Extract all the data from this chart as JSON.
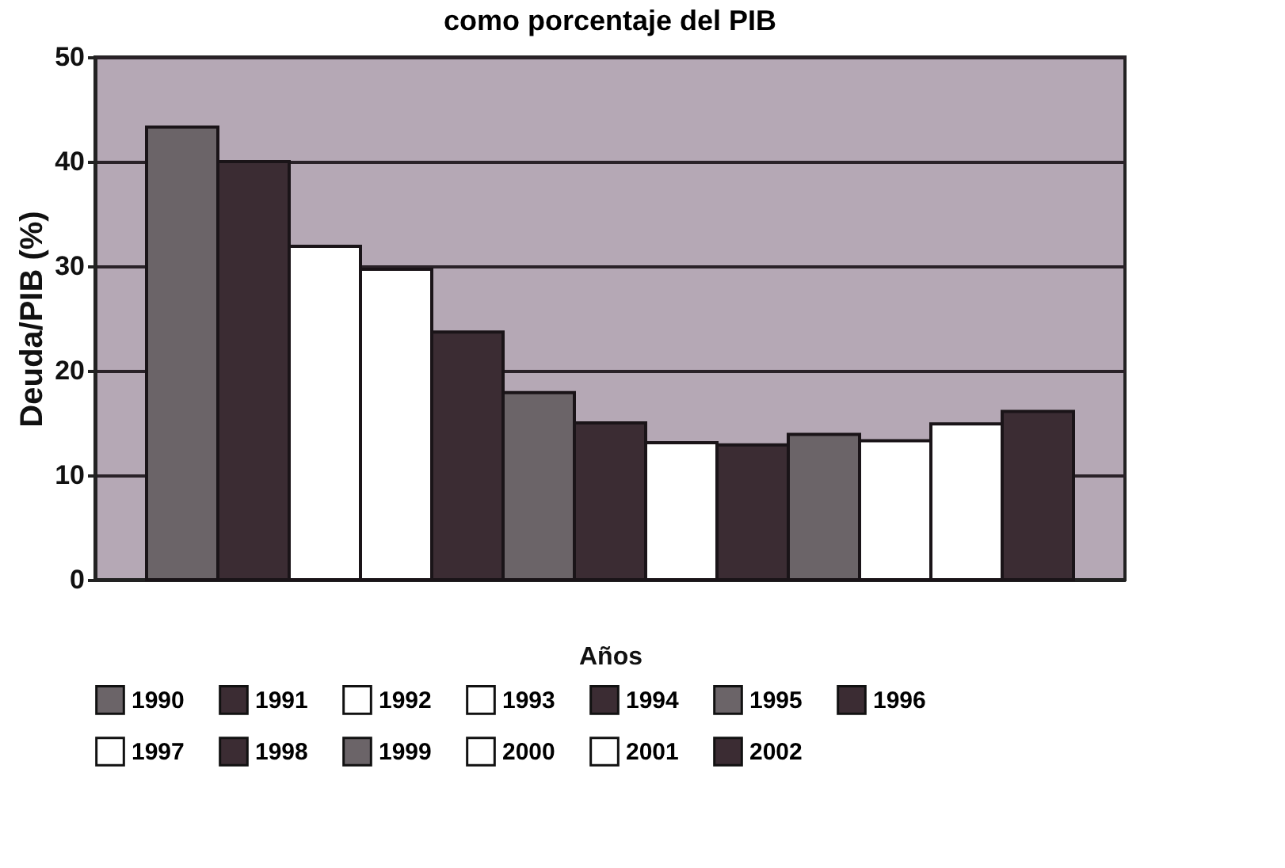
{
  "chart_data": {
    "type": "bar",
    "title": "como porcentaje del PIB",
    "xlabel": "Años",
    "ylabel": "Deuda/PIB  (%)",
    "categories": [
      null
    ],
    "series": [
      {
        "name": "1990",
        "color": "#6b6468",
        "values": [
          43.3
        ]
      },
      {
        "name": "1991",
        "color": "#3b2c33",
        "values": [
          40
        ]
      },
      {
        "name": "1992",
        "color": "#ffffff",
        "values": [
          31.9
        ]
      },
      {
        "name": "1993",
        "color": "#ffffff",
        "values": [
          29.7
        ]
      },
      {
        "name": "1994",
        "color": "#3b2c33",
        "values": [
          23.7
        ]
      },
      {
        "name": "1995",
        "color": "#6b6468",
        "values": [
          17.9
        ]
      },
      {
        "name": "1996",
        "color": "#3b2c33",
        "values": [
          15
        ]
      },
      {
        "name": "1997",
        "color": "#ffffff",
        "values": [
          13.1
        ]
      },
      {
        "name": "1998",
        "color": "#3b2c33",
        "values": [
          12.9
        ]
      },
      {
        "name": "1999",
        "color": "#6b6468",
        "values": [
          13.9
        ]
      },
      {
        "name": "2000",
        "color": "#ffffff",
        "values": [
          13.3
        ]
      },
      {
        "name": "2001",
        "color": "#ffffff",
        "values": [
          14.9
        ]
      },
      {
        "name": "2002",
        "color": "#3b2c33",
        "values": [
          16.1
        ]
      }
    ],
    "ylim": [
      0,
      50
    ],
    "yticks": [
      0,
      10,
      20,
      30,
      40,
      50
    ],
    "grid": "y",
    "legend": "bottom",
    "tick_labels": "y"
  }
}
